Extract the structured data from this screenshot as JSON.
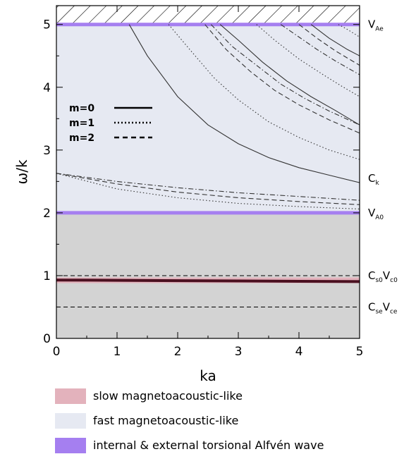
{
  "chart_data": {
    "type": "line",
    "xlabel": "ka",
    "ylabel": "ω/k",
    "xlim": [
      0,
      5
    ],
    "ylim": [
      0,
      5.3
    ],
    "x_ticks": [
      "0",
      "1",
      "2",
      "3",
      "4",
      "5"
    ],
    "y_ticks": [
      "0",
      "1",
      "2",
      "3",
      "4",
      "5"
    ],
    "grid": false,
    "regions": [
      {
        "name": "slow magnetoacoustic-like",
        "color": "#e3b2bc",
        "y": [
          0.88,
          0.97
        ]
      },
      {
        "name": "fast magnetoacoustic-like",
        "color": "#e6e9f2",
        "y": [
          2.0,
          5.0
        ]
      },
      {
        "name": "internal & external torsional Alfvén wave",
        "color": "#a57ff0",
        "y": [
          2.0,
          5.0
        ]
      }
    ],
    "gray_region": {
      "color": "#d3d3d3",
      "y": [
        0,
        2.0
      ]
    },
    "hatched_region": {
      "y": [
        5.0,
        5.3
      ]
    },
    "reference_lines": [
      {
        "y": 5.0,
        "main": "V",
        "sub": "Ae",
        "style": "band"
      },
      {
        "y": 2.55,
        "main": "C",
        "sub": "k",
        "style": "none"
      },
      {
        "y": 2.0,
        "main": "V",
        "sub": "A0",
        "style": "band"
      },
      {
        "y": 1.0,
        "main": "C",
        "sub": "s0",
        "main2": "V",
        "sub2": "c0",
        "style": "dashed"
      },
      {
        "y": 0.5,
        "main": "C",
        "sub": "se",
        "main2": "V",
        "sub2": "ce",
        "style": "dashed"
      }
    ],
    "inner_legend": [
      {
        "label": "m=0",
        "style": "solid"
      },
      {
        "label": "m=1",
        "style": "dotted"
      },
      {
        "label": "m=2",
        "style": "dashed"
      }
    ],
    "series": [
      {
        "style": "solid",
        "x": [
          1.2,
          1.5,
          2.0,
          2.5,
          3.0,
          3.5,
          4.0,
          4.5,
          5.0
        ],
        "y": [
          5.0,
          4.5,
          3.85,
          3.4,
          3.1,
          2.88,
          2.72,
          2.6,
          2.48
        ]
      },
      {
        "style": "dotted",
        "x": [
          1.85,
          2.2,
          2.6,
          3.0,
          3.5,
          4.0,
          4.5,
          5.0
        ],
        "y": [
          5.0,
          4.6,
          4.15,
          3.8,
          3.45,
          3.2,
          3.0,
          2.85
        ]
      },
      {
        "style": "dashed",
        "x": [
          2.45,
          2.8,
          3.2,
          3.6,
          4.0,
          4.5,
          5.0
        ],
        "y": [
          5.0,
          4.6,
          4.25,
          3.95,
          3.72,
          3.48,
          3.27
        ]
      },
      {
        "style": "dashdot",
        "x": [
          2.55,
          2.9,
          3.3,
          3.7,
          4.1,
          4.5,
          5.0
        ],
        "y": [
          5.0,
          4.65,
          4.35,
          4.05,
          3.82,
          3.62,
          3.4
        ]
      },
      {
        "style": "solid",
        "x": [
          2.7,
          3.0,
          3.4,
          3.8,
          4.2,
          4.6,
          5.0
        ],
        "y": [
          5.0,
          4.75,
          4.4,
          4.1,
          3.85,
          3.63,
          3.4
        ]
      },
      {
        "style": "dotted",
        "x": [
          3.3,
          3.6,
          4.0,
          4.4,
          4.7,
          5.0
        ],
        "y": [
          5.0,
          4.75,
          4.45,
          4.2,
          4.02,
          3.85
        ]
      },
      {
        "style": "dashdot",
        "x": [
          3.7,
          4.0,
          4.3,
          4.6,
          5.0
        ],
        "y": [
          5.0,
          4.8,
          4.6,
          4.42,
          4.2
        ]
      },
      {
        "style": "dashed",
        "x": [
          4.0,
          4.3,
          4.6,
          5.0
        ],
        "y": [
          5.0,
          4.78,
          4.58,
          4.35
        ]
      },
      {
        "style": "solid",
        "x": [
          4.2,
          4.5,
          4.8,
          5.0
        ],
        "y": [
          5.0,
          4.78,
          4.6,
          4.5
        ]
      },
      {
        "style": "dotted",
        "x": [
          4.65,
          4.8,
          5.0
        ],
        "y": [
          5.0,
          4.92,
          4.8
        ]
      },
      {
        "style": "dashdot",
        "x": [
          0.0,
          1.0,
          2.0,
          3.0,
          4.0,
          5.0
        ],
        "y": [
          2.63,
          2.5,
          2.4,
          2.32,
          2.26,
          2.2
        ]
      },
      {
        "style": "dashed",
        "x": [
          0.0,
          1.0,
          2.0,
          3.0,
          4.0,
          5.0
        ],
        "y": [
          2.63,
          2.46,
          2.33,
          2.24,
          2.18,
          2.13
        ]
      },
      {
        "style": "dotted",
        "x": [
          0.0,
          1.0,
          2.0,
          3.0,
          4.0,
          5.0
        ],
        "y": [
          2.63,
          2.38,
          2.24,
          2.15,
          2.1,
          2.06
        ]
      },
      {
        "style": "slow",
        "x": [
          0.0,
          1.0,
          2.0,
          3.0,
          4.0,
          5.0
        ],
        "y": [
          0.93,
          0.925,
          0.92,
          0.915,
          0.91,
          0.905
        ]
      }
    ]
  },
  "legend": [
    {
      "label": "slow magnetoacoustic-like",
      "color": "#e3b2bc"
    },
    {
      "label": "fast magnetoacoustic-like",
      "color": "#e6e9f2"
    },
    {
      "label": "internal & external torsional Alfvén wave",
      "color": "#a57ff0"
    }
  ]
}
